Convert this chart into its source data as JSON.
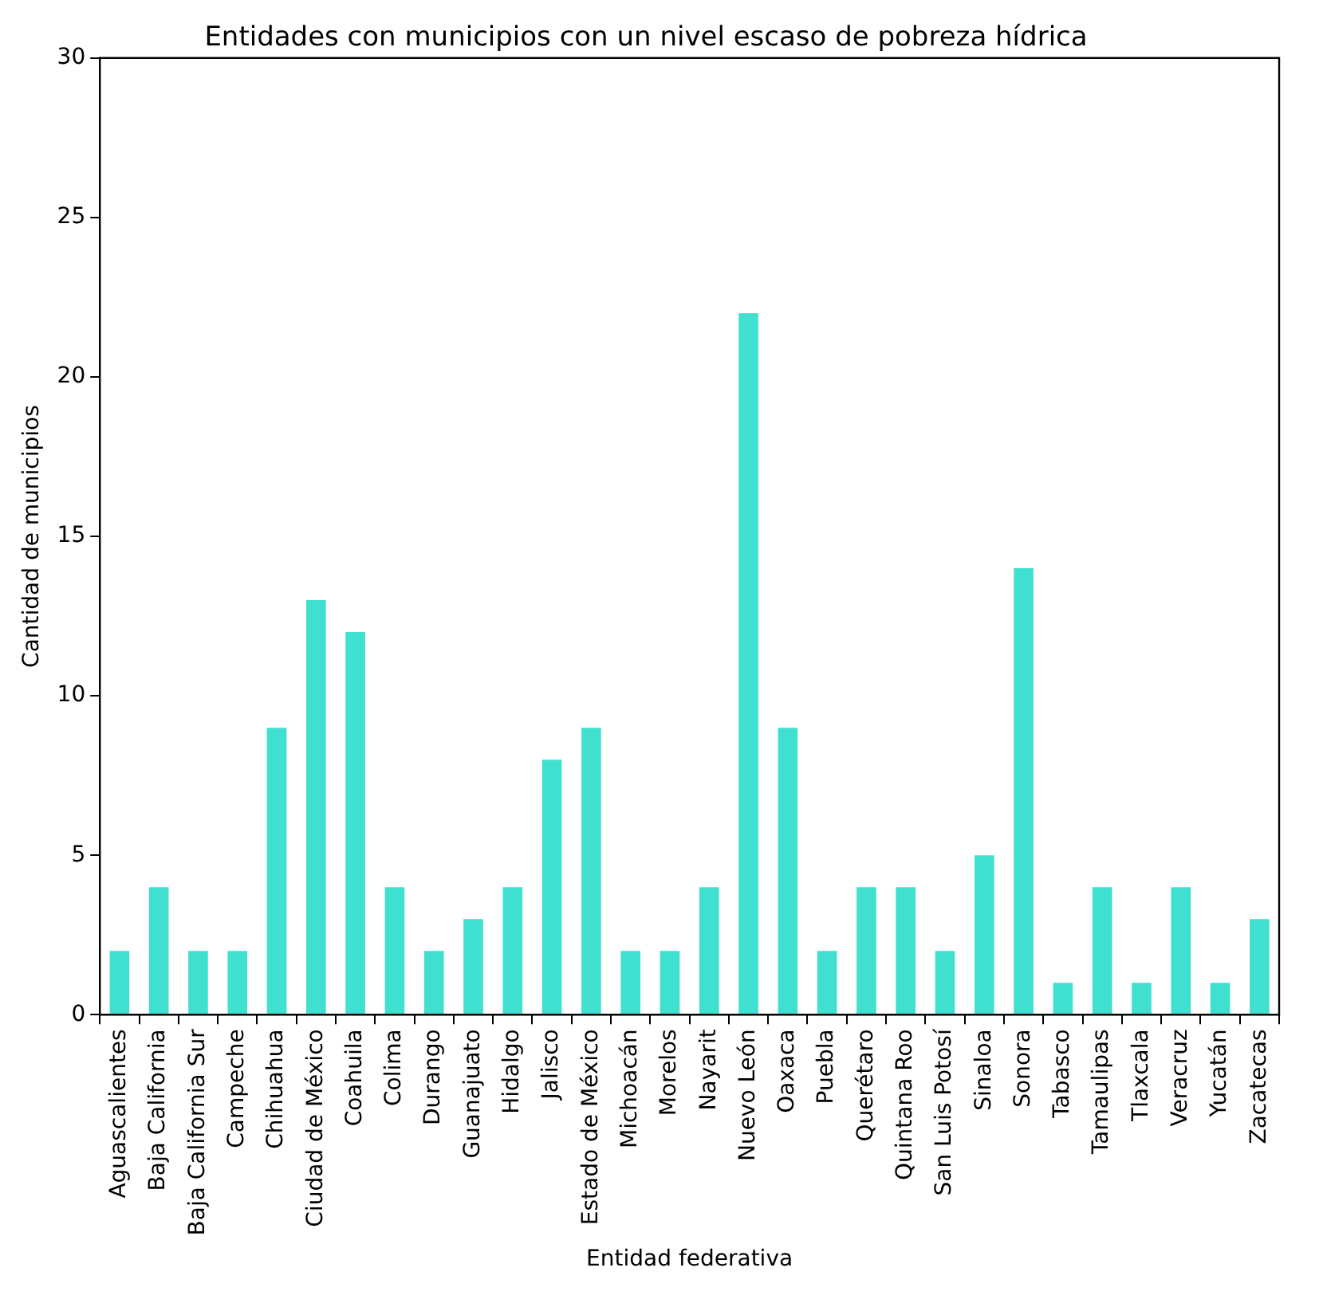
{
  "chart_data": {
    "type": "bar",
    "title": "Entidades con municipios con un nivel escaso de pobreza hídrica",
    "xlabel": "Entidad federativa",
    "ylabel": "Cantidad de municipios",
    "categories": [
      "Aguascalientes",
      "Baja California",
      "Baja California Sur",
      "Campeche",
      "Chihuahua",
      "Ciudad de México",
      "Coahuila",
      "Colima",
      "Durango",
      "Guanajuato",
      "Hidalgo",
      "Jalisco",
      "Estado de México",
      "Michoacán",
      "Morelos",
      "Nayarit",
      "Nuevo León",
      "Oaxaca",
      "Puebla",
      "Querétaro",
      "Quintana Roo",
      "San Luis Potosí",
      "Sinaloa",
      "Sonora",
      "Tabasco",
      "Tamaulipas",
      "Tlaxcala",
      "Veracruz",
      "Yucatán",
      "Zacatecas"
    ],
    "values": [
      2,
      4,
      2,
      2,
      9,
      13,
      12,
      4,
      2,
      3,
      4,
      8,
      9,
      2,
      2,
      4,
      22,
      9,
      2,
      4,
      4,
      2,
      5,
      14,
      1,
      4,
      1,
      4,
      1,
      3
    ],
    "color": "#40e0d0",
    "ylim": [
      0,
      30
    ],
    "yticks": [
      0,
      5,
      10,
      15,
      20,
      25,
      30
    ],
    "grid": false,
    "legend": false
  }
}
